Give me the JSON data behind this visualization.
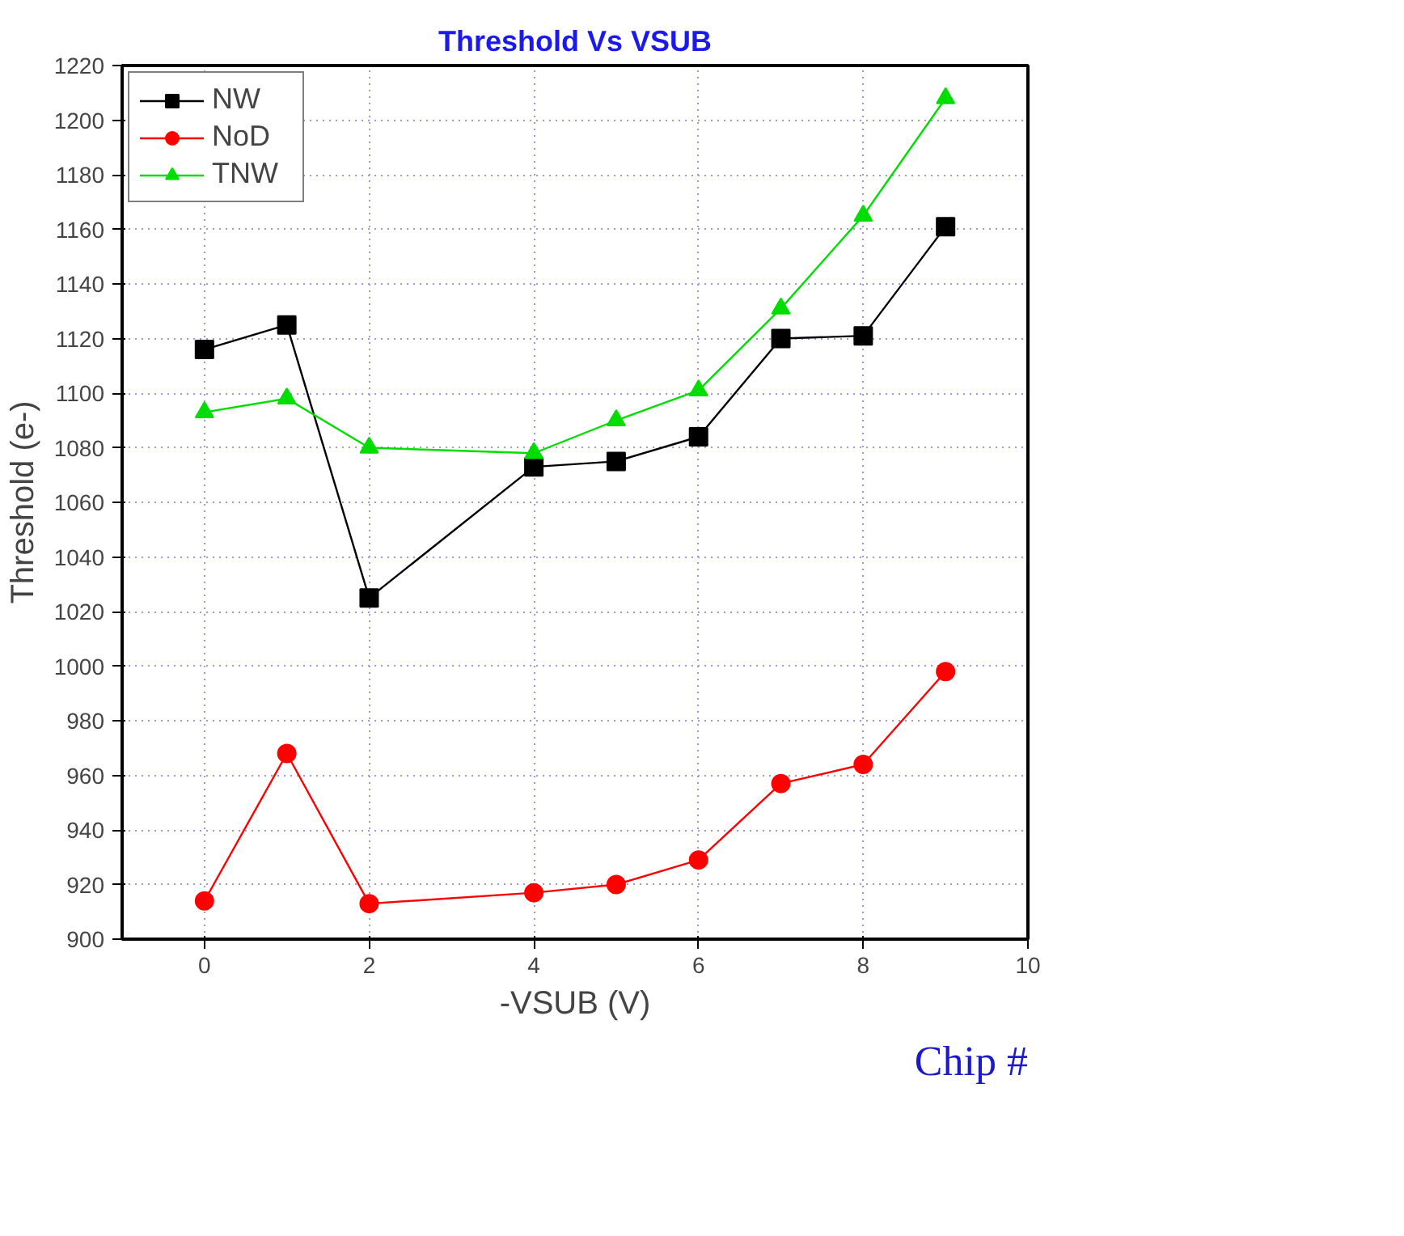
{
  "chart_data": {
    "type": "line",
    "title": "Threshold Vs VSUB",
    "xlabel": "-VSUB (V)",
    "ylabel": "Threshold (e-)",
    "x": [
      0,
      1,
      2,
      4,
      5,
      6,
      7,
      8,
      9
    ],
    "series": [
      {
        "name": "NW",
        "color": "#000000",
        "marker": "square",
        "values": [
          1116,
          1125,
          1025,
          1073,
          1075,
          1084,
          1120,
          1121,
          1161
        ]
      },
      {
        "name": "NoD",
        "color": "#ff0000",
        "marker": "circle",
        "values": [
          914,
          968,
          913,
          917,
          920,
          929,
          957,
          964,
          998
        ]
      },
      {
        "name": "TNW",
        "color": "#00dd00",
        "marker": "triangle",
        "values": [
          1093,
          1098,
          1080,
          1078,
          1090,
          1101,
          1131,
          1165,
          1208
        ]
      }
    ],
    "xlim": [
      -1,
      10
    ],
    "xticks": [
      0,
      2,
      4,
      6,
      8,
      10
    ],
    "ylim": [
      900,
      1220
    ],
    "yticks": [
      900,
      920,
      940,
      960,
      980,
      1000,
      1020,
      1040,
      1060,
      1080,
      1100,
      1120,
      1140,
      1160,
      1180,
      1200,
      1220
    ],
    "grid": true,
    "legend": "top left",
    "line_style": "solid",
    "annotations": [
      "Chip #"
    ]
  }
}
